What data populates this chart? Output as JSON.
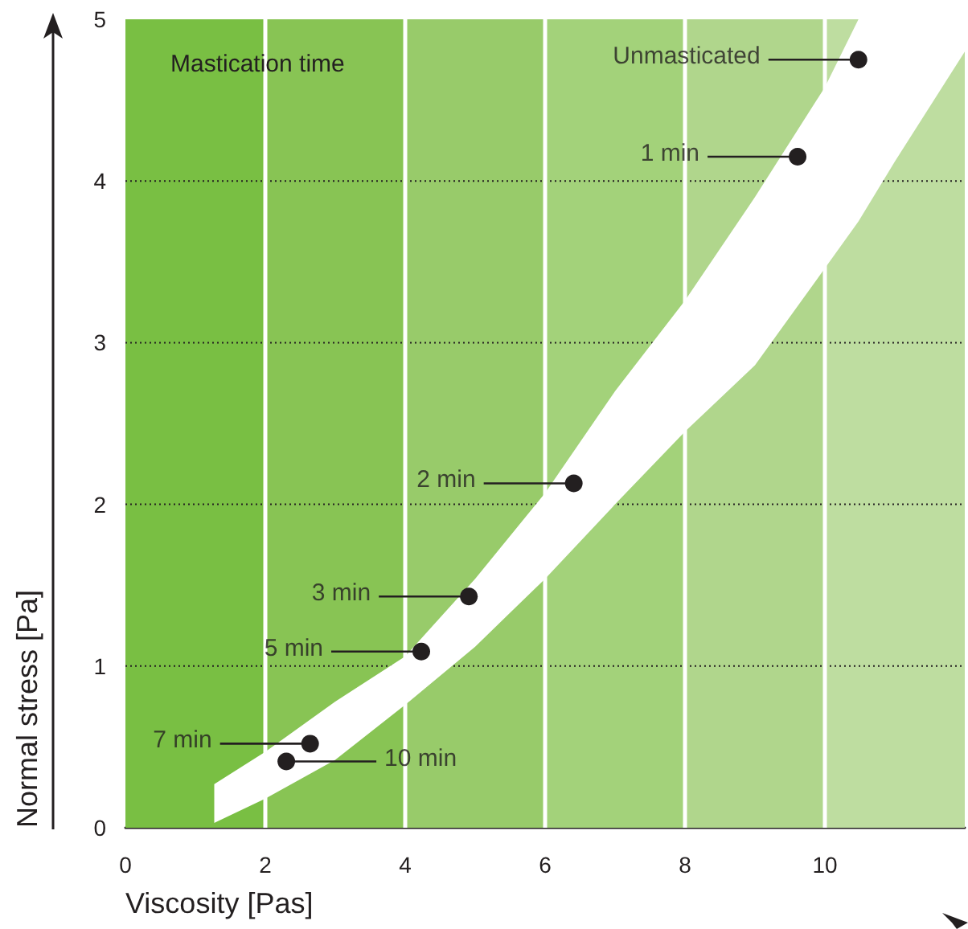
{
  "chart_data": {
    "type": "scatter",
    "xlabel": "Viscosity [Pas]",
    "ylabel": "Normal stress [Pa]",
    "xlim": [
      0,
      12
    ],
    "ylim": [
      0,
      5
    ],
    "xticks": [
      0,
      2,
      4,
      6,
      8,
      10
    ],
    "yticks": [
      0,
      1,
      2,
      3,
      4,
      5
    ],
    "grid": true,
    "marker": "circle",
    "annotations": [
      "Mastication time",
      "Unmasticated",
      "1 min",
      "2 min",
      "3 min",
      "5 min",
      "7 min",
      "10 min"
    ],
    "bands": [
      {
        "axis": "x",
        "from": 0,
        "to": 2,
        "color": "#79bf43"
      },
      {
        "axis": "x",
        "from": 2,
        "to": 4,
        "color": "#88c454"
      },
      {
        "axis": "x",
        "from": 4,
        "to": 6,
        "color": "#98cb6a"
      },
      {
        "axis": "x",
        "from": 6,
        "to": 8,
        "color": "#a3d27a"
      },
      {
        "axis": "x",
        "from": 8,
        "to": 10,
        "color": "#b0d68c"
      },
      {
        "axis": "x",
        "from": 10,
        "to": 12,
        "color": "#bedda0"
      }
    ],
    "series": [
      {
        "type": "area",
        "color": "#ffffff",
        "x": [
          1.27,
          2,
          3,
          4,
          5,
          6,
          7,
          8,
          9,
          10,
          10.48,
          11,
          12
        ],
        "values": [
          null,
          null,
          null,
          null,
          null,
          null,
          null,
          null,
          null,
          null,
          null,
          null,
          null
        ],
        "lower": [
          0.03,
          0.18,
          0.42,
          0.76,
          1.12,
          1.54,
          2.0,
          2.45,
          2.86,
          3.46,
          3.75,
          4.12,
          4.8
        ],
        "upper": [
          0.27,
          0.47,
          0.78,
          1.06,
          1.54,
          2.07,
          2.7,
          3.26,
          3.9,
          4.58,
          5,
          5,
          5
        ]
      },
      {
        "type": "scatter",
        "color": "#231f20",
        "x": [
          10.48,
          9.61,
          6.41,
          4.91,
          4.23,
          2.64,
          2.3
        ],
        "values": [
          4.75,
          4.15,
          2.13,
          1.43,
          1.09,
          0.52,
          0.41
        ]
      }
    ]
  }
}
